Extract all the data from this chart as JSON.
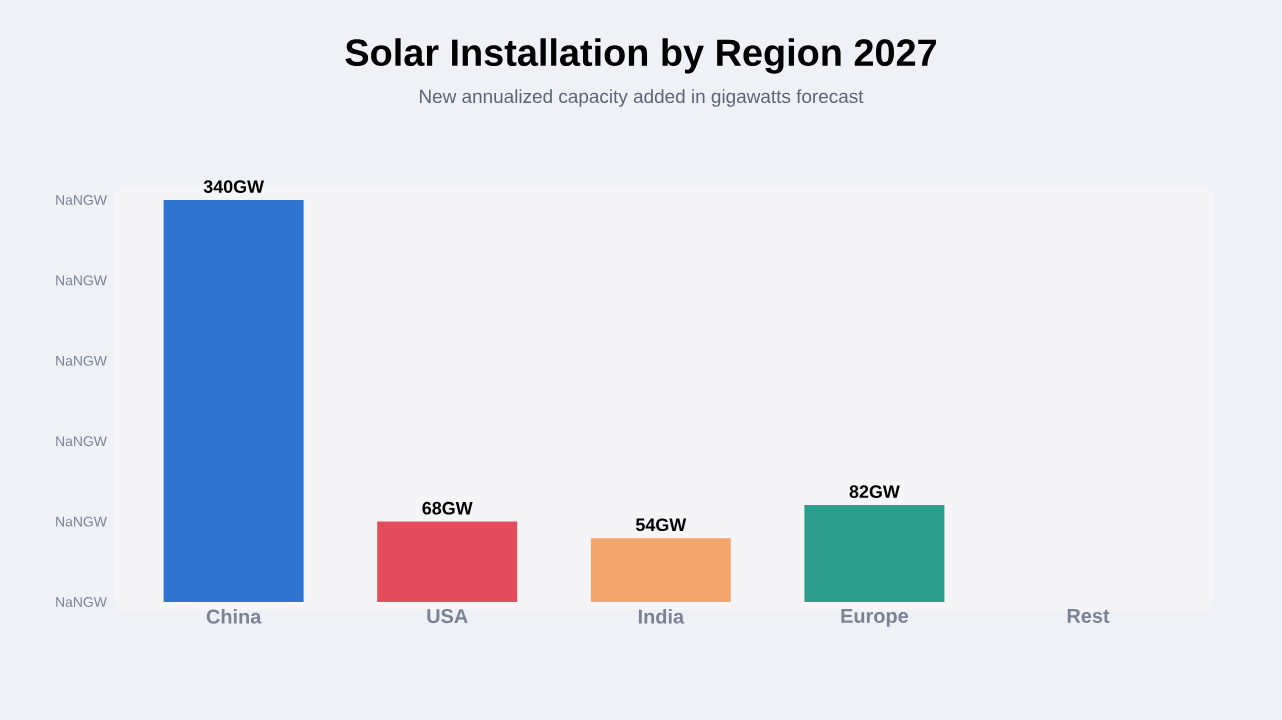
{
  "chart_data": {
    "type": "bar",
    "title": "Solar Installation by Region 2027",
    "subtitle": "New annualized capacity added in gigawatts forecast",
    "categories": [
      "China",
      "USA",
      "India",
      "Europe",
      "Rest"
    ],
    "values": [
      340,
      68,
      54,
      82,
      null
    ],
    "colors": [
      "#2f74d0",
      "#e44b5b",
      "#f4a56c",
      "#2e9e8c",
      "#999999"
    ],
    "value_labels": [
      "340GW",
      "68GW",
      "54GW",
      "82GW",
      null
    ],
    "annotations": [
      "NaNGW",
      "NaNGW",
      "NaNGW",
      "NaNGW",
      "NaNGW",
      "NaNGW"
    ]
  }
}
